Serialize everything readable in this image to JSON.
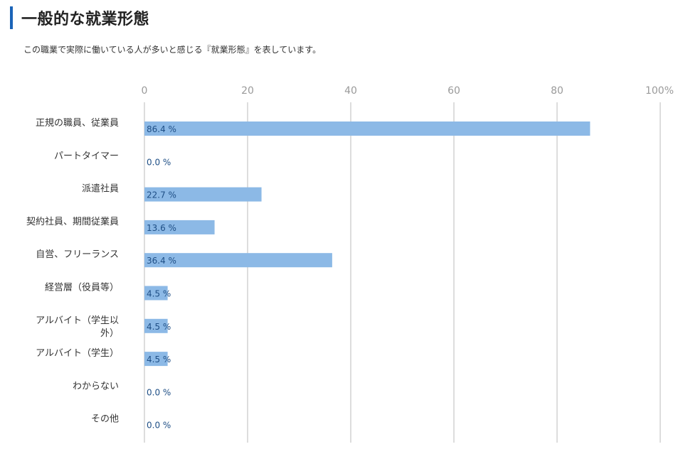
{
  "section": {
    "title": "一般的な就業形態",
    "description": "この職業で実際に働いている人が多いと感じる『就業形態』を表しています。"
  },
  "chart_data": {
    "type": "bar",
    "orientation": "horizontal",
    "categories": [
      "正規の職員、従業員",
      "パートタイマー",
      "派遣社員",
      "契約社員、期間従業員",
      "自営、フリーランス",
      "経営層（役員等）",
      "アルバイト（学生以外）",
      "アルバイト（学生）",
      "わからない",
      "その他"
    ],
    "category_label_lines": [
      [
        "正規の職員、従業員"
      ],
      [
        "パートタイマー"
      ],
      [
        "派遣社員"
      ],
      [
        "契約社員、期間従業員"
      ],
      [
        "自営、フリーランス"
      ],
      [
        "経営層（役員等）"
      ],
      [
        "アルバイト（学生以",
        "外）"
      ],
      [
        "アルバイト（学生）"
      ],
      [
        "わからない"
      ],
      [
        "その他"
      ]
    ],
    "values": [
      86.4,
      0.0,
      22.7,
      13.6,
      36.4,
      4.5,
      4.5,
      4.5,
      0.0,
      0.0
    ],
    "value_labels": [
      "86.4 %",
      "0.0 %",
      "22.7 %",
      "13.6 %",
      "36.4 %",
      "4.5 %",
      "4.5 %",
      "4.5 %",
      "0.0 %",
      "0.0 %"
    ],
    "xlim": [
      0,
      100
    ],
    "ticks": [
      0,
      20,
      40,
      60,
      80,
      100
    ],
    "tick_labels": [
      "0",
      "20",
      "40",
      "60",
      "80",
      "100%"
    ],
    "grid": true,
    "bar_color": "#8cb9e6",
    "grid_color": "#dddddd",
    "value_label_color": "#1f4f86"
  }
}
